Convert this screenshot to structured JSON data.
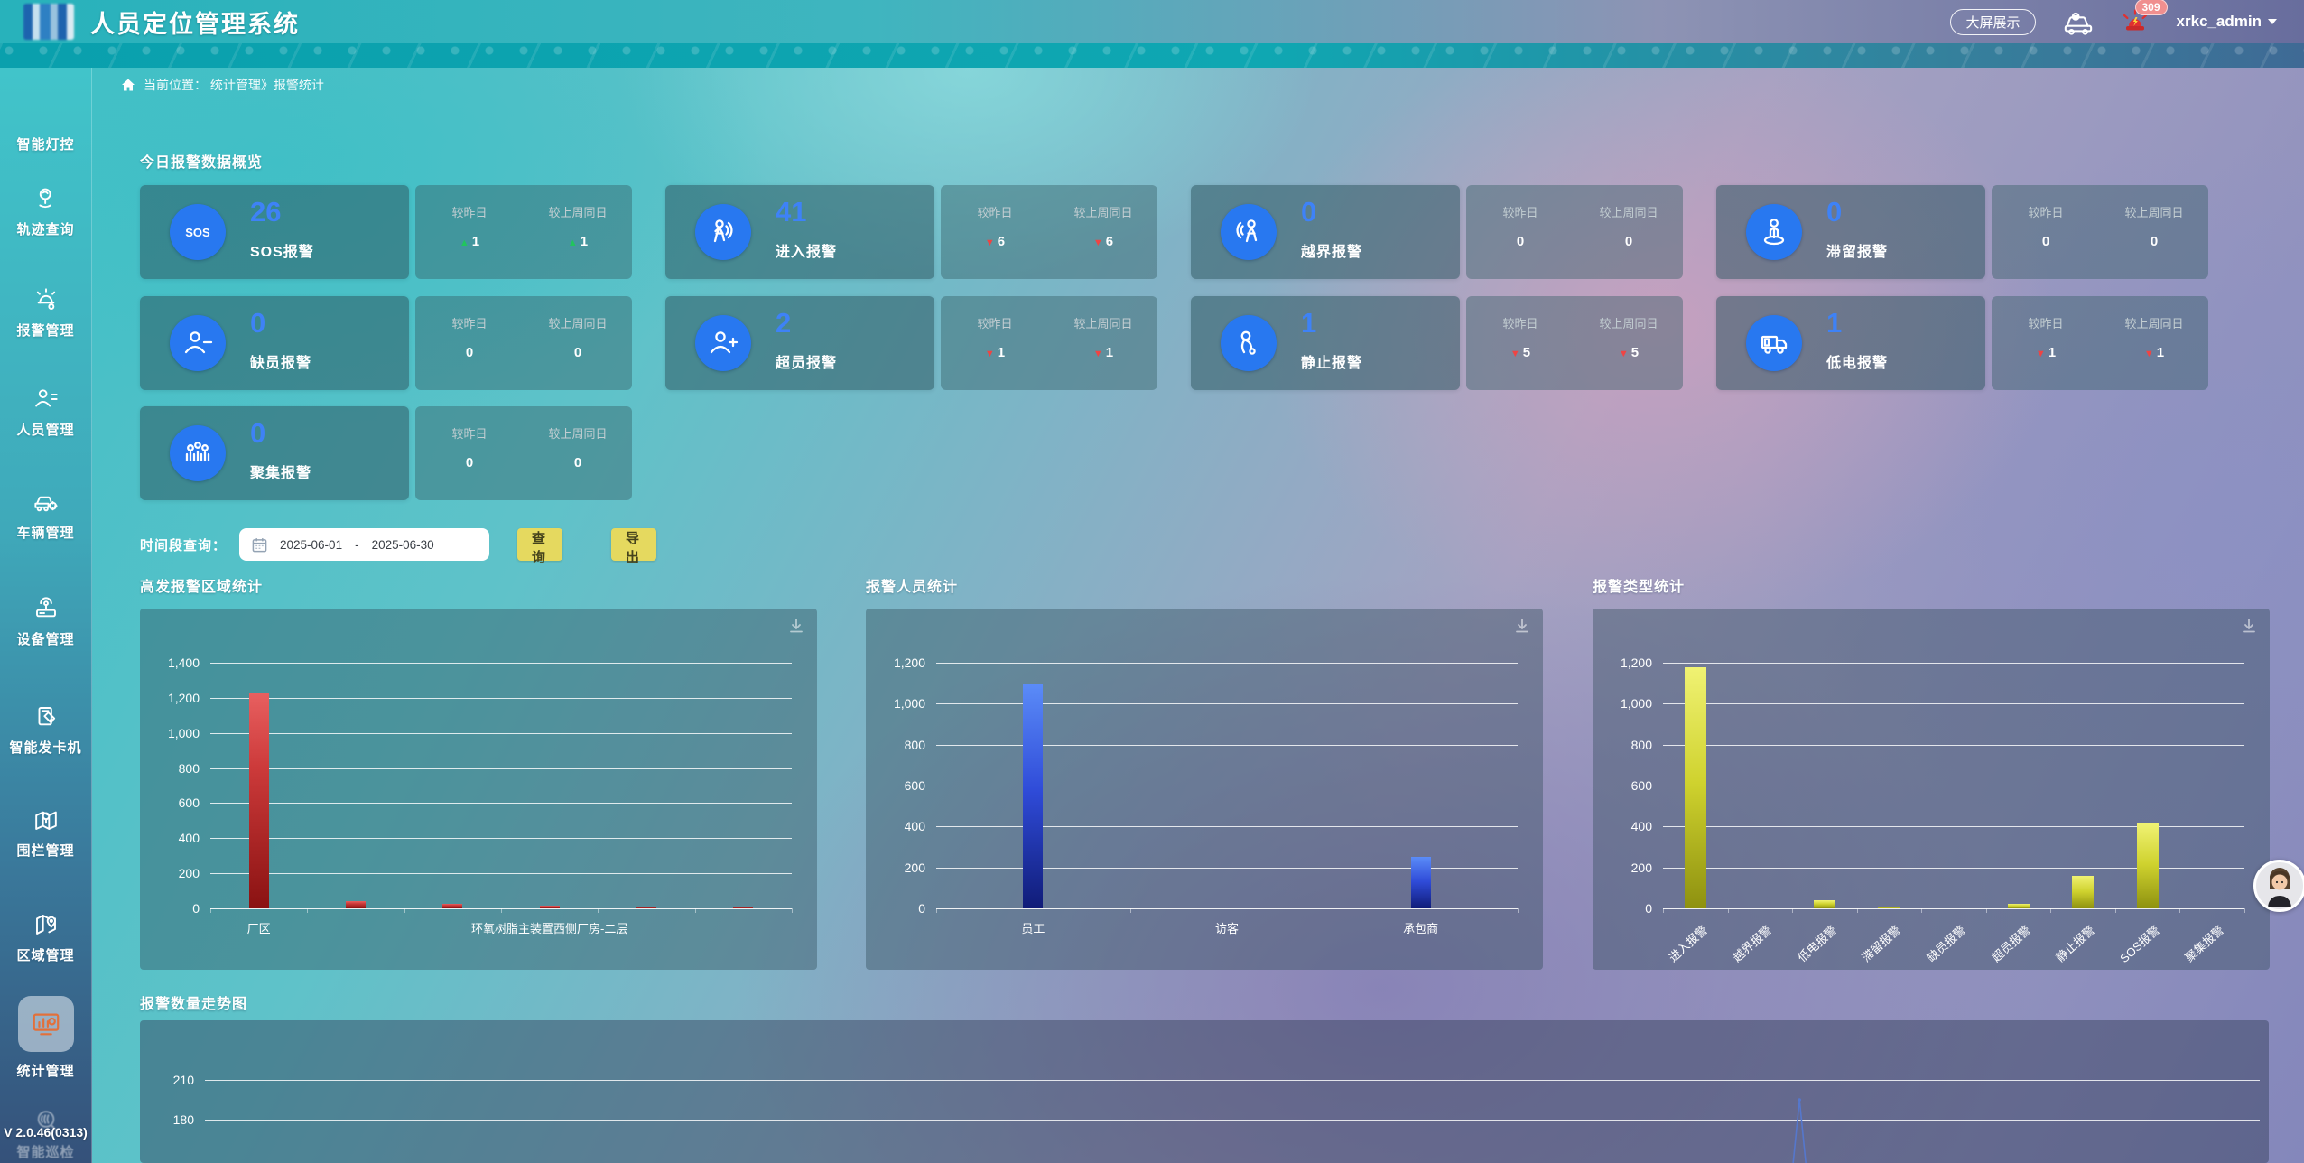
{
  "header": {
    "title": "人员定位管理系统",
    "big_screen_button": "大屏展示",
    "car_icon": "vehicle-monitor-icon",
    "alarm_icon": "alarm-siren-icon",
    "badge_count": "309",
    "username": "xrkc_admin"
  },
  "breadcrumb": {
    "text": "当前位置： 统计管理》报警统计"
  },
  "sidebar": {
    "items": [
      {
        "label": "智能灯控",
        "icon": "light-control-icon",
        "label_only": true,
        "active": false
      },
      {
        "label": "轨迹查询",
        "icon": "track-query-icon",
        "active": false
      },
      {
        "label": "报警管理",
        "icon": "alarm-manage-icon",
        "active": false
      },
      {
        "label": "人员管理",
        "icon": "personnel-manage-icon",
        "active": false
      },
      {
        "label": "车辆管理",
        "icon": "vehicle-manage-icon",
        "active": false
      },
      {
        "label": "设备管理",
        "icon": "device-manage-icon",
        "active": false
      },
      {
        "label": "智能发卡机",
        "icon": "card-dispenser-icon",
        "active": false
      },
      {
        "label": "围栏管理",
        "icon": "fence-manage-icon",
        "active": false
      },
      {
        "label": "区域管理",
        "icon": "area-manage-icon",
        "active": false
      },
      {
        "label": "统计管理",
        "icon": "statistics-manage-icon",
        "active": true
      },
      {
        "label": "智能巡检",
        "icon": "smart-inspect-icon",
        "active": false,
        "dimmed": true
      }
    ],
    "version": "V 2.0.46(0313)"
  },
  "overview": {
    "title": "今日报警数据概览",
    "yesterday_label": "较昨日",
    "last_week_label": "较上周同日",
    "cards": [
      {
        "label": "SOS报警",
        "value": "26",
        "icon": "sos-icon",
        "vs_yesterday": {
          "trend": "up",
          "value": "1"
        },
        "vs_last_week": {
          "trend": "up",
          "value": "1"
        }
      },
      {
        "label": "进入报警",
        "value": "41",
        "icon": "enter-alarm-icon",
        "vs_yesterday": {
          "trend": "down",
          "value": "6"
        },
        "vs_last_week": {
          "trend": "down",
          "value": "6"
        }
      },
      {
        "label": "越界报警",
        "value": "0",
        "icon": "cross-border-alarm-icon",
        "vs_yesterday": {
          "trend": "flat",
          "value": "0"
        },
        "vs_last_week": {
          "trend": "flat",
          "value": "0"
        }
      },
      {
        "label": "滞留报警",
        "value": "0",
        "icon": "linger-alarm-icon",
        "vs_yesterday": {
          "trend": "flat",
          "value": "0"
        },
        "vs_last_week": {
          "trend": "flat",
          "value": "0"
        }
      },
      {
        "label": "缺员报警",
        "value": "0",
        "icon": "absent-alarm-icon",
        "vs_yesterday": {
          "trend": "flat",
          "value": "0"
        },
        "vs_last_week": {
          "trend": "flat",
          "value": "0"
        }
      },
      {
        "label": "超员报警",
        "value": "2",
        "icon": "overstaff-alarm-icon",
        "vs_yesterday": {
          "trend": "down",
          "value": "1"
        },
        "vs_last_week": {
          "trend": "down",
          "value": "1"
        }
      },
      {
        "label": "静止报警",
        "value": "1",
        "icon": "still-alarm-icon",
        "vs_yesterday": {
          "trend": "down",
          "value": "5"
        },
        "vs_last_week": {
          "trend": "down",
          "value": "5"
        }
      },
      {
        "label": "低电报警",
        "value": "1",
        "icon": "low-battery-alarm-icon",
        "vs_yesterday": {
          "trend": "down",
          "value": "1"
        },
        "vs_last_week": {
          "trend": "down",
          "value": "1"
        }
      },
      {
        "label": "聚集报警",
        "value": "0",
        "icon": "gather-alarm-icon",
        "vs_yesterday": {
          "trend": "flat",
          "value": "0"
        },
        "vs_last_week": {
          "trend": "flat",
          "value": "0"
        }
      }
    ]
  },
  "query": {
    "label": "时间段查询：",
    "date_start": "2025-06-01",
    "dash": "-",
    "date_end": "2025-06-30",
    "search_label": "查 询",
    "export_label": "导 出"
  },
  "chart_data": [
    {
      "type": "bar",
      "title": "高发报警区域统计",
      "categories": [
        "厂区",
        "",
        "",
        "环氧树脂主装置西侧厂房-二层",
        "",
        ""
      ],
      "values": [
        1230,
        40,
        25,
        15,
        10,
        8
      ],
      "ylim": [
        0,
        1400
      ],
      "ytick_step": 200,
      "bar_color": "red-gradient",
      "grid": true,
      "legend": "none"
    },
    {
      "type": "bar",
      "title": "报警人员统计",
      "categories": [
        "员工",
        "访客",
        "承包商"
      ],
      "values": [
        1100,
        0,
        250
      ],
      "ylim": [
        0,
        1200
      ],
      "ytick_step": 200,
      "bar_color": "blue-gradient",
      "grid": true,
      "legend": "none"
    },
    {
      "type": "bar",
      "title": "报警类型统计",
      "categories": [
        "进入报警",
        "越界报警",
        "低电报警",
        "滞留报警",
        "缺员报警",
        "超员报警",
        "静止报警",
        "SOS报警",
        "聚集报警"
      ],
      "values": [
        1180,
        0,
        40,
        10,
        0,
        20,
        160,
        415,
        0
      ],
      "ylim": [
        0,
        1200
      ],
      "ytick_step": 200,
      "bar_color": "yellow-gradient",
      "xlabel_rotate": -42,
      "grid": true,
      "legend": "none"
    },
    {
      "type": "line",
      "title": "报警数量走势图",
      "visible_yticks": [
        210,
        180
      ],
      "line_color": "#5577cc",
      "spike": {
        "x_fraction": 0.776,
        "peak_value": 198
      },
      "note_partially_cut": true
    }
  ],
  "colors": {
    "accent_blue": "#3e82f7",
    "icon_circle_blue": "#2878f0",
    "button_yellow": "#e5d95f",
    "up_green": "#21c55d",
    "down_red": "#ef4444",
    "badge_red": "#f08f8f",
    "bar_red": "#cc3a3a",
    "bar_blue": "#2f4bd8",
    "bar_yellow": "#cfd22e"
  }
}
